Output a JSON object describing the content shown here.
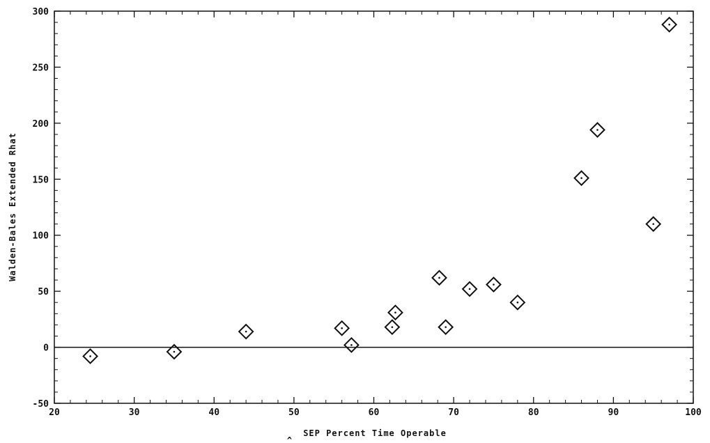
{
  "chart_data": {
    "type": "scatter",
    "title": "",
    "xlabel": "SEP Percent Time Operable",
    "ylabel": "Walden-Bales Extended Rhat",
    "xlim": [
      20,
      100
    ],
    "ylim": [
      -50,
      300
    ],
    "xticks": [
      "20",
      "30",
      "40",
      "50",
      "60",
      "70",
      "80",
      "90",
      "100"
    ],
    "yticks": [
      "-50",
      "0",
      "50",
      "100",
      "150",
      "200",
      "250",
      "300"
    ],
    "reference_line_y": 0,
    "marker": "diamond-with-dot",
    "points": [
      {
        "x": 24.5,
        "y": -8
      },
      {
        "x": 35,
        "y": -4
      },
      {
        "x": 44,
        "y": 14
      },
      {
        "x": 56,
        "y": 17
      },
      {
        "x": 57.2,
        "y": 2
      },
      {
        "x": 62.3,
        "y": 18
      },
      {
        "x": 62.7,
        "y": 31
      },
      {
        "x": 68.2,
        "y": 62
      },
      {
        "x": 69,
        "y": 18
      },
      {
        "x": 72,
        "y": 52
      },
      {
        "x": 75,
        "y": 56
      },
      {
        "x": 78,
        "y": 40
      },
      {
        "x": 86,
        "y": 151
      },
      {
        "x": 88,
        "y": 194
      },
      {
        "x": 95,
        "y": 110
      },
      {
        "x": 97,
        "y": 288
      }
    ]
  }
}
